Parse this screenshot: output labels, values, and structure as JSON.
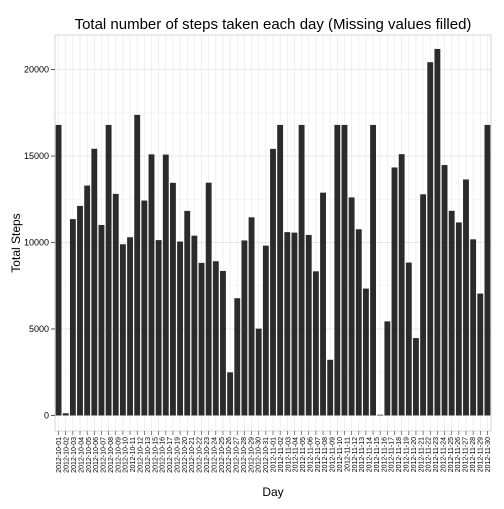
{
  "chart_data": {
    "type": "bar",
    "title": "Total number of steps taken each day (Missing values filled)",
    "xlabel": "Day",
    "ylabel": "Total Steps",
    "ylim": [
      -900,
      22000
    ],
    "yticks": [
      0,
      5000,
      10000,
      15000,
      20000
    ],
    "grid": true,
    "legend": "none",
    "colors": {
      "bar": "#2b2b2b",
      "panel_border": "#cccccc",
      "grid_major": "#e6e6e6",
      "grid_minor": "#f2f2f2",
      "axis_tick": "#333333"
    },
    "categories": [
      "2012-10-01",
      "2012-10-02",
      "2012-10-03",
      "2012-10-04",
      "2012-10-05",
      "2012-10-06",
      "2012-10-07",
      "2012-10-08",
      "2012-10-09",
      "2012-10-10",
      "2012-10-11",
      "2012-10-12",
      "2012-10-13",
      "2012-10-14",
      "2012-10-15",
      "2012-10-16",
      "2012-10-17",
      "2012-10-18",
      "2012-10-19",
      "2012-10-20",
      "2012-10-21",
      "2012-10-22",
      "2012-10-23",
      "2012-10-24",
      "2012-10-25",
      "2012-10-26",
      "2012-10-27",
      "2012-10-28",
      "2012-10-29",
      "2012-10-30",
      "2012-10-31",
      "2012-11-01",
      "2012-11-02",
      "2012-11-03",
      "2012-11-04",
      "2012-11-05",
      "2012-11-06",
      "2012-11-07",
      "2012-11-08",
      "2012-11-09",
      "2012-11-10",
      "2012-11-11",
      "2012-11-12",
      "2012-11-13",
      "2012-11-14",
      "2012-11-15",
      "2012-11-16",
      "2012-11-17",
      "2012-11-18",
      "2012-11-19",
      "2012-11-20",
      "2012-11-21",
      "2012-11-22",
      "2012-11-23",
      "2012-11-24",
      "2012-11-25",
      "2012-11-26",
      "2012-11-27",
      "2012-11-28",
      "2012-11-29",
      "2012-11-30"
    ],
    "values": [
      16800,
      126,
      11352,
      12116,
      13294,
      15420,
      11015,
      16800,
      12811,
      9900,
      10304,
      17382,
      12426,
      15098,
      10139,
      15084,
      13452,
      10056,
      11829,
      10395,
      8821,
      13460,
      8918,
      8355,
      2492,
      6778,
      10119,
      11458,
      5018,
      9819,
      15414,
      16800,
      10600,
      10571,
      16800,
      10439,
      8334,
      12883,
      3219,
      16800,
      16800,
      12608,
      10765,
      7336,
      16800,
      41,
      5441,
      14339,
      15110,
      8841,
      4472,
      12787,
      20427,
      21194,
      14478,
      11834,
      11162,
      13646,
      10183,
      7047,
      16800
    ],
    "x_tick_labels": [
      "2012-10-01",
      "2012-10-02",
      "2012-10-03",
      "2012-10-04",
      "2012-10-05",
      "2012-10-06",
      "2012-10-07",
      "2012-10-08",
      "2012-10-09",
      "2012-10-10",
      "2012-10-11",
      "2012-10-12",
      "2012-10-13",
      "2012-10-15",
      "2012-10-16",
      "2012-10-17",
      "2012-10-19",
      "2012-10-20",
      "2012-10-21",
      "2012-10-22",
      "2012-10-23",
      "2012-10-24",
      "2012-10-25",
      "2012-10-26",
      "2012-10-27",
      "2012-10-28",
      "2012-10-29",
      "2012-10-30",
      "2012-10-31",
      "2012-11-01",
      "2012-11-02",
      "2012-11-03",
      "2012-11-04",
      "2012-11-05",
      "2012-11-06",
      "2012-11-07",
      "2012-11-08",
      "2012-11-09",
      "2012-11-10",
      "2012-11-11",
      "2012-11-12",
      "2012-11-13",
      "2012-11-14",
      "2012-11-15",
      "2012-11-16",
      "2012-11-17",
      "2012-11-18",
      "2012-11-19",
      "2012-11-20",
      "2012-11-21",
      "2012-11-22",
      "2012-11-23",
      "2012-11-24",
      "2012-11-25",
      "2012-11-26",
      "2012-11-27",
      "2012-11-28",
      "2012-11-29",
      "2012-11-30"
    ]
  }
}
